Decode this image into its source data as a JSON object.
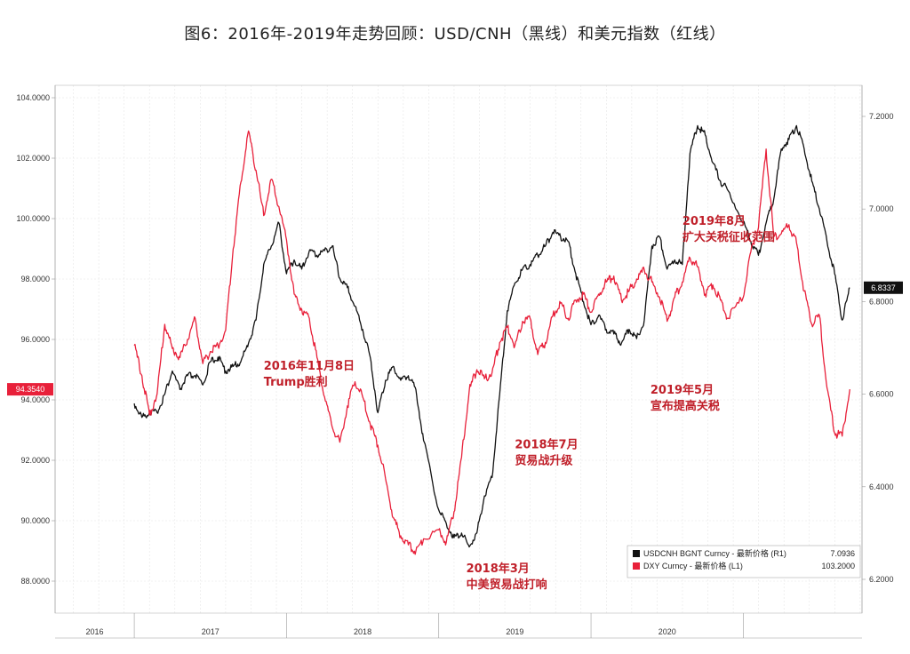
{
  "title": "图6：2016年-2019年走势回顾：USD/CNH（黑线）和美元指数（红线）",
  "chart_data": {
    "type": "line",
    "x_categories": [
      "2016",
      "2017",
      "2018",
      "2019",
      "2020"
    ],
    "left_axis": {
      "ticks": [
        "104.0000",
        "102.0000",
        "100.0000",
        "98.0000",
        "96.0000",
        "94.0000",
        "92.0000",
        "90.0000",
        "88.0000"
      ],
      "range": [
        87.0,
        104.5
      ]
    },
    "right_axis": {
      "ticks": [
        "7.2000",
        "7.0000",
        "6.8000",
        "6.6000",
        "6.4000",
        "6.2000"
      ],
      "range": [
        6.2,
        7.25
      ]
    },
    "grid": true,
    "series": [
      {
        "name": "USDCNH BGNT Curncy - 最新价格 (R1)",
        "legend_value": "7.0936",
        "axis": "right",
        "color": "#111111",
        "last_label": "6.8337",
        "points": [
          [
            2016.0,
            6.58
          ],
          [
            2016.05,
            6.55
          ],
          [
            2016.1,
            6.56
          ],
          [
            2016.15,
            6.56
          ],
          [
            2016.2,
            6.6
          ],
          [
            2016.25,
            6.65
          ],
          [
            2016.3,
            6.61
          ],
          [
            2016.35,
            6.64
          ],
          [
            2016.4,
            6.64
          ],
          [
            2016.45,
            6.62
          ],
          [
            2016.5,
            6.67
          ],
          [
            2016.55,
            6.68
          ],
          [
            2016.6,
            6.65
          ],
          [
            2016.65,
            6.66
          ],
          [
            2016.7,
            6.67
          ],
          [
            2016.75,
            6.71
          ],
          [
            2016.8,
            6.76
          ],
          [
            2016.85,
            6.88
          ],
          [
            2016.9,
            6.92
          ],
          [
            2016.95,
            6.97
          ],
          [
            2017.0,
            6.86
          ],
          [
            2017.05,
            6.89
          ],
          [
            2017.1,
            6.87
          ],
          [
            2017.15,
            6.91
          ],
          [
            2017.2,
            6.9
          ],
          [
            2017.25,
            6.91
          ],
          [
            2017.3,
            6.92
          ],
          [
            2017.35,
            6.85
          ],
          [
            2017.4,
            6.83
          ],
          [
            2017.45,
            6.79
          ],
          [
            2017.5,
            6.74
          ],
          [
            2017.55,
            6.68
          ],
          [
            2017.6,
            6.56
          ],
          [
            2017.65,
            6.63
          ],
          [
            2017.7,
            6.66
          ],
          [
            2017.75,
            6.63
          ],
          [
            2017.8,
            6.64
          ],
          [
            2017.85,
            6.61
          ],
          [
            2017.9,
            6.5
          ],
          [
            2018.0,
            6.35
          ],
          [
            2018.05,
            6.32
          ],
          [
            2018.1,
            6.29
          ],
          [
            2018.15,
            6.3
          ],
          [
            2018.2,
            6.27
          ],
          [
            2018.25,
            6.3
          ],
          [
            2018.3,
            6.38
          ],
          [
            2018.35,
            6.42
          ],
          [
            2018.4,
            6.6
          ],
          [
            2018.45,
            6.78
          ],
          [
            2018.5,
            6.84
          ],
          [
            2018.55,
            6.87
          ],
          [
            2018.6,
            6.88
          ],
          [
            2018.65,
            6.9
          ],
          [
            2018.7,
            6.92
          ],
          [
            2018.75,
            6.95
          ],
          [
            2018.8,
            6.94
          ],
          [
            2018.85,
            6.93
          ],
          [
            2018.9,
            6.86
          ],
          [
            2018.95,
            6.8
          ],
          [
            2019.0,
            6.75
          ],
          [
            2019.05,
            6.77
          ],
          [
            2019.1,
            6.74
          ],
          [
            2019.15,
            6.73
          ],
          [
            2019.2,
            6.71
          ],
          [
            2019.25,
            6.74
          ],
          [
            2019.3,
            6.72
          ],
          [
            2019.35,
            6.76
          ],
          [
            2019.4,
            6.92
          ],
          [
            2019.45,
            6.94
          ],
          [
            2019.5,
            6.87
          ],
          [
            2019.55,
            6.89
          ],
          [
            2019.6,
            6.88
          ],
          [
            2019.65,
            7.12
          ],
          [
            2019.7,
            7.18
          ],
          [
            2019.75,
            7.16
          ],
          [
            2019.8,
            7.1
          ],
          [
            2019.85,
            7.06
          ],
          [
            2019.9,
            7.04
          ],
          [
            2020.0,
            6.97
          ],
          [
            2020.05,
            6.93
          ],
          [
            2020.1,
            6.9
          ],
          [
            2020.15,
            6.97
          ],
          [
            2020.2,
            7.02
          ],
          [
            2020.25,
            7.13
          ],
          [
            2020.3,
            7.15
          ],
          [
            2020.35,
            7.18
          ],
          [
            2020.4,
            7.13
          ],
          [
            2020.45,
            7.06
          ],
          [
            2020.5,
            7.0
          ],
          [
            2020.55,
            6.93
          ],
          [
            2020.6,
            6.86
          ],
          [
            2020.65,
            6.76
          ],
          [
            2020.7,
            6.83
          ]
        ]
      },
      {
        "name": "DXY Curncy - 最新价格 (L1)",
        "legend_value": "103.2000",
        "axis": "left",
        "color": "#e8203a",
        "last_label": "94.3540",
        "points": [
          [
            2016.0,
            95.8
          ],
          [
            2016.05,
            94.8
          ],
          [
            2016.1,
            93.5
          ],
          [
            2016.15,
            94.2
          ],
          [
            2016.2,
            96.5
          ],
          [
            2016.25,
            95.7
          ],
          [
            2016.3,
            95.4
          ],
          [
            2016.35,
            96.0
          ],
          [
            2016.4,
            96.7
          ],
          [
            2016.45,
            95.2
          ],
          [
            2016.5,
            95.6
          ],
          [
            2016.55,
            95.8
          ],
          [
            2016.6,
            96.3
          ],
          [
            2016.65,
            99.0
          ],
          [
            2016.7,
            101.2
          ],
          [
            2016.75,
            102.9
          ],
          [
            2016.8,
            101.6
          ],
          [
            2016.85,
            100.1
          ],
          [
            2016.9,
            101.3
          ],
          [
            2016.95,
            100.4
          ],
          [
            2017.0,
            99.3
          ],
          [
            2017.05,
            97.5
          ],
          [
            2017.1,
            97.0
          ],
          [
            2017.15,
            96.7
          ],
          [
            2017.2,
            95.4
          ],
          [
            2017.25,
            94.1
          ],
          [
            2017.3,
            93.1
          ],
          [
            2017.35,
            92.6
          ],
          [
            2017.4,
            93.8
          ],
          [
            2017.45,
            94.6
          ],
          [
            2017.5,
            94.1
          ],
          [
            2017.55,
            93.2
          ],
          [
            2017.6,
            92.5
          ],
          [
            2017.65,
            91.4
          ],
          [
            2017.7,
            90.1
          ],
          [
            2017.75,
            89.5
          ],
          [
            2017.8,
            89.2
          ],
          [
            2017.85,
            89.0
          ],
          [
            2017.9,
            89.4
          ],
          [
            2018.0,
            89.7
          ],
          [
            2018.05,
            89.3
          ],
          [
            2018.1,
            90.3
          ],
          [
            2018.15,
            92.1
          ],
          [
            2018.2,
            94.3
          ],
          [
            2018.25,
            95.0
          ],
          [
            2018.3,
            94.7
          ],
          [
            2018.35,
            94.9
          ],
          [
            2018.4,
            95.9
          ],
          [
            2018.45,
            96.4
          ],
          [
            2018.5,
            95.8
          ],
          [
            2018.55,
            96.6
          ],
          [
            2018.6,
            96.7
          ],
          [
            2018.65,
            95.5
          ],
          [
            2018.7,
            95.9
          ],
          [
            2018.75,
            96.8
          ],
          [
            2018.8,
            97.2
          ],
          [
            2018.85,
            96.7
          ],
          [
            2018.9,
            97.3
          ],
          [
            2018.95,
            97.5
          ],
          [
            2019.0,
            96.9
          ],
          [
            2019.05,
            97.5
          ],
          [
            2019.1,
            97.9
          ],
          [
            2019.15,
            98.1
          ],
          [
            2019.2,
            97.3
          ],
          [
            2019.25,
            97.6
          ],
          [
            2019.3,
            98.0
          ],
          [
            2019.35,
            98.3
          ],
          [
            2019.4,
            97.9
          ],
          [
            2019.45,
            97.4
          ],
          [
            2019.5,
            96.6
          ],
          [
            2019.55,
            97.4
          ],
          [
            2019.6,
            97.9
          ],
          [
            2019.65,
            98.7
          ],
          [
            2019.7,
            98.4
          ],
          [
            2019.75,
            97.5
          ],
          [
            2019.8,
            97.8
          ],
          [
            2019.85,
            97.3
          ],
          [
            2019.9,
            96.7
          ],
          [
            2020.0,
            97.4
          ],
          [
            2020.05,
            98.9
          ],
          [
            2020.1,
            99.7
          ],
          [
            2020.15,
            102.3
          ],
          [
            2020.2,
            99.4
          ],
          [
            2020.25,
            99.5
          ],
          [
            2020.3,
            99.8
          ],
          [
            2020.35,
            99.2
          ],
          [
            2020.4,
            97.6
          ],
          [
            2020.45,
            96.5
          ],
          [
            2020.5,
            96.8
          ],
          [
            2020.55,
            94.4
          ],
          [
            2020.6,
            92.9
          ],
          [
            2020.65,
            92.8
          ],
          [
            2020.7,
            94.35
          ]
        ]
      }
    ],
    "annotations": [
      {
        "lines": [
          "2016年11月8日",
          "Trump胜利"
        ],
        "x": 2016.85,
        "y": 95.0
      },
      {
        "lines": [
          "2018年7月",
          "贸易战升级"
        ],
        "x": 2018.5,
        "y": 92.4
      },
      {
        "lines": [
          "2018年3月",
          "中美贸易战打响"
        ],
        "x": 2018.18,
        "y": 88.3
      },
      {
        "lines": [
          "2019年8月",
          "扩大关税征收范围"
        ],
        "x": 2019.6,
        "y": 99.8
      },
      {
        "lines": [
          "2019年5月",
          "宣布提高关税"
        ],
        "x": 2019.39,
        "y": 94.2
      }
    ]
  }
}
